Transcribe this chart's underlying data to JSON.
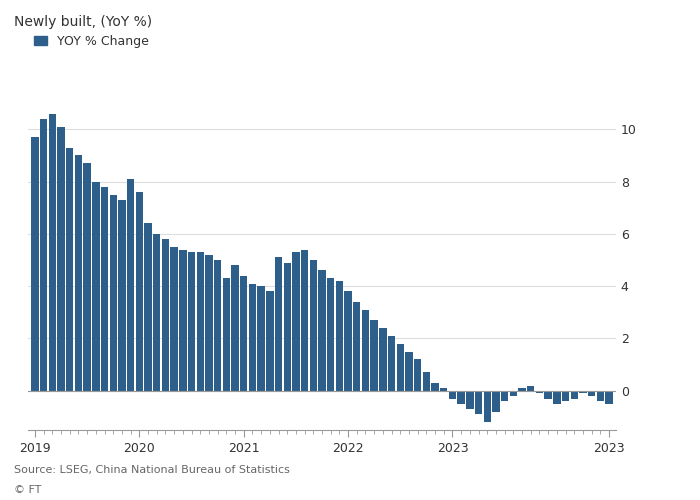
{
  "title": "Newly built, (YoY %)",
  "legend_label": "YOY % Change",
  "bar_color": "#2E5F8A",
  "source_text": "Source: LSEG, China National Bureau of Statistics",
  "ft_text": "© FT",
  "ylim": [
    -1.5,
    11.5
  ],
  "yticks": [
    0,
    2,
    4,
    6,
    8,
    10
  ],
  "background_color": "#ffffff",
  "values": [
    9.7,
    10.4,
    10.6,
    10.1,
    9.3,
    9.0,
    8.7,
    8.0,
    7.8,
    7.5,
    7.3,
    8.1,
    7.6,
    6.4,
    6.0,
    5.8,
    5.5,
    5.4,
    5.3,
    5.3,
    5.2,
    5.0,
    4.3,
    4.8,
    4.4,
    4.1,
    4.0,
    3.8,
    5.1,
    4.9,
    5.3,
    5.4,
    5.0,
    4.6,
    4.3,
    4.2,
    3.8,
    3.4,
    3.1,
    2.7,
    2.4,
    2.1,
    1.8,
    1.5,
    1.2,
    0.7,
    0.3,
    0.1,
    -0.3,
    -0.5,
    -0.7,
    -0.9,
    -1.2,
    -0.8,
    -0.4,
    -0.2,
    0.1,
    0.2,
    -0.1,
    -0.3,
    -0.5,
    -0.4,
    -0.3,
    -0.1,
    -0.2,
    -0.4,
    -0.5
  ],
  "x_tick_labels": [
    "2019",
    "2020",
    "2021",
    "2022",
    "2023",
    "2023"
  ],
  "x_tick_positions": [
    0,
    12,
    24,
    36,
    48,
    66
  ],
  "grid_color": "#dddddd",
  "grid_style": "-",
  "spine_color": "#999999",
  "tick_color": "#333333",
  "text_color": "#333333",
  "source_color": "#666666",
  "title_fontsize": 10,
  "legend_fontsize": 9,
  "tick_fontsize": 9,
  "source_fontsize": 8
}
